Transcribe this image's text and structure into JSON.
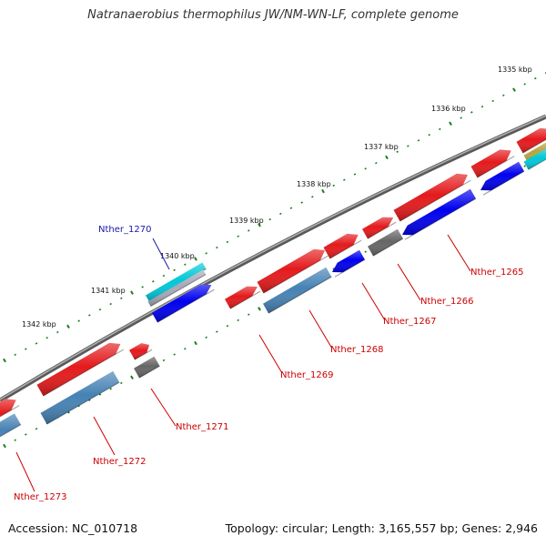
{
  "title": "Natranaerobius thermophilus JW/NM-WN-LF, complete genome",
  "footer": {
    "accession": "Accession: NC_010718",
    "summary": "Topology: circular; Length: 3,165,557 bp; Genes: 2,946"
  },
  "ruler_labels": [
    "1335 kbp",
    "1336 kbp",
    "1337 kbp",
    "1338 kbp",
    "1339 kbp",
    "1340 kbp",
    "1341 kbp",
    "1342 kbp"
  ],
  "gene_labels": [
    "Nther_1265",
    "Nther_1266",
    "Nther_1267",
    "Nther_1268",
    "Nther_1269",
    "Nther_1270",
    "Nther_1271",
    "Nther_1272",
    "Nther_1273"
  ],
  "colors": {
    "cds": "#e41a1c",
    "gene": "#0000ee",
    "steel": "#4682b4",
    "gray": "#666666",
    "cyan": "#00c8d8",
    "olive": "#b5a642",
    "backbone": "#8a8a8a",
    "tick": "#1a7f1a",
    "label_red": "#cc0000",
    "label_blue": "#1a1aaa"
  }
}
